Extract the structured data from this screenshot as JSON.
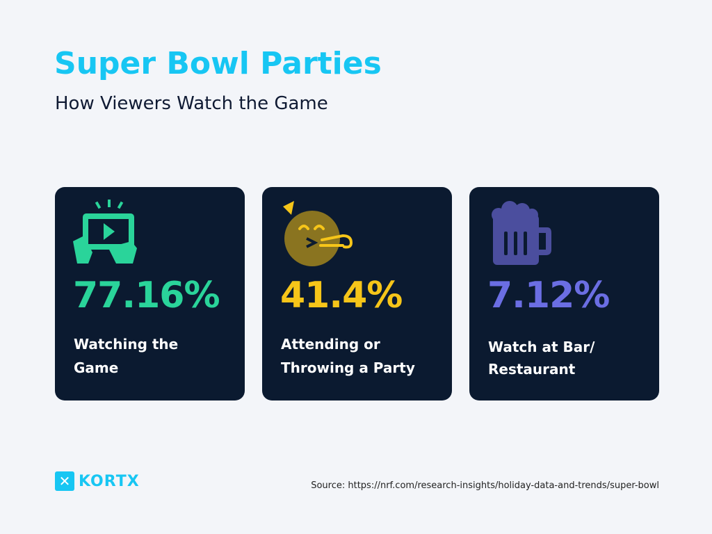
{
  "header": {
    "title": "Super Bowl Parties",
    "subtitle": "How Viewers Watch the Game"
  },
  "cards": [
    {
      "value": "77.16%",
      "lines": [
        "Watching the",
        "Game"
      ],
      "color": "#2ad49a"
    },
    {
      "value": "41.4%",
      "lines": [
        "Attending or",
        "Throwing a Party"
      ],
      "color": "#f6c519"
    },
    {
      "value": "7.12%",
      "lines": [
        "Watch at Bar/",
        "Restaurant"
      ],
      "color": "#6b6ee3"
    }
  ],
  "footer": {
    "logo": "KORTX",
    "source": "Source: https://nrf.com/research-insights/holiday-data-and-trends/super-bowl"
  }
}
